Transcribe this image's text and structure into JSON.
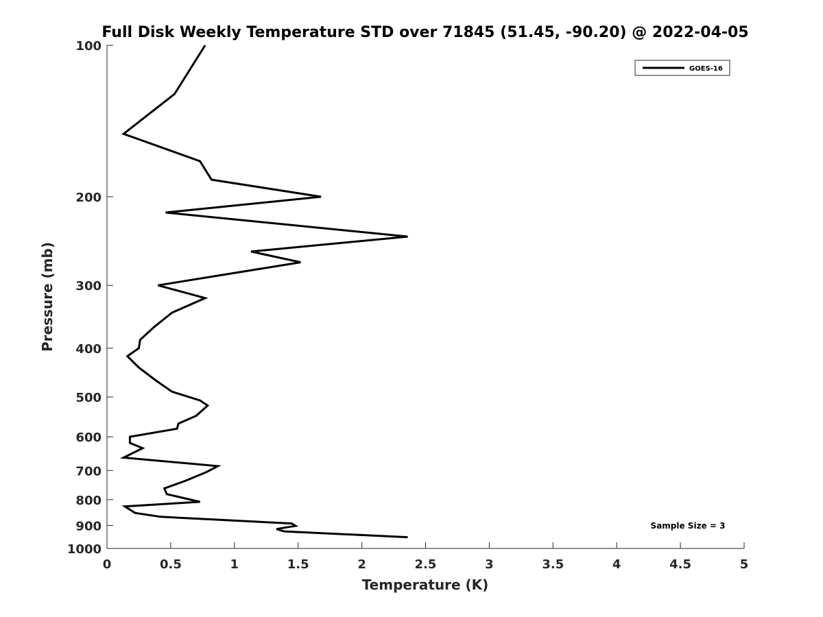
{
  "chart_data": {
    "type": "line",
    "title": "Full Disk Weekly Temperature STD over 71845 (51.45, -90.20) @ 2022-04-05",
    "xlabel": "Temperature (K)",
    "ylabel": "Pressure (mb)",
    "xlim": [
      0,
      5
    ],
    "ylim": [
      100,
      1000
    ],
    "y_scale": "log",
    "y_reversed": true,
    "x_ticks": [
      "0",
      "0.5",
      "1",
      "1.5",
      "2",
      "2.5",
      "3",
      "3.5",
      "4",
      "4.5",
      "5"
    ],
    "y_ticks": [
      "100",
      "200",
      "300",
      "400",
      "500",
      "600",
      "700",
      "800",
      "900",
      "1000"
    ],
    "grid": false,
    "legend_position": "top-right",
    "annotation": "Sample Size = 3",
    "series": [
      {
        "name": "GOES-16",
        "color": "#000000",
        "points": [
          [
            0.77,
            100
          ],
          [
            0.53,
            125
          ],
          [
            0.13,
            150
          ],
          [
            0.73,
            170
          ],
          [
            0.82,
            185
          ],
          [
            1.68,
            200
          ],
          [
            0.46,
            215
          ],
          [
            2.36,
            240
          ],
          [
            1.13,
            257
          ],
          [
            1.52,
            270
          ],
          [
            0.4,
            300
          ],
          [
            0.77,
            318
          ],
          [
            0.51,
            340
          ],
          [
            0.37,
            363
          ],
          [
            0.26,
            385
          ],
          [
            0.25,
            400
          ],
          [
            0.16,
            415
          ],
          [
            0.25,
            437
          ],
          [
            0.38,
            463
          ],
          [
            0.51,
            488
          ],
          [
            0.73,
            508
          ],
          [
            0.79,
            520
          ],
          [
            0.7,
            545
          ],
          [
            0.56,
            565
          ],
          [
            0.55,
            578
          ],
          [
            0.18,
            600
          ],
          [
            0.18,
            617
          ],
          [
            0.28,
            632
          ],
          [
            0.13,
            660
          ],
          [
            0.87,
            686
          ],
          [
            0.78,
            705
          ],
          [
            0.62,
            733
          ],
          [
            0.45,
            760
          ],
          [
            0.47,
            780
          ],
          [
            0.73,
            808
          ],
          [
            0.14,
            825
          ],
          [
            0.22,
            850
          ],
          [
            0.42,
            865
          ],
          [
            1.45,
            892
          ],
          [
            1.48,
            902
          ],
          [
            1.33,
            915
          ],
          [
            1.39,
            925
          ],
          [
            2.36,
            950
          ]
        ]
      }
    ]
  }
}
